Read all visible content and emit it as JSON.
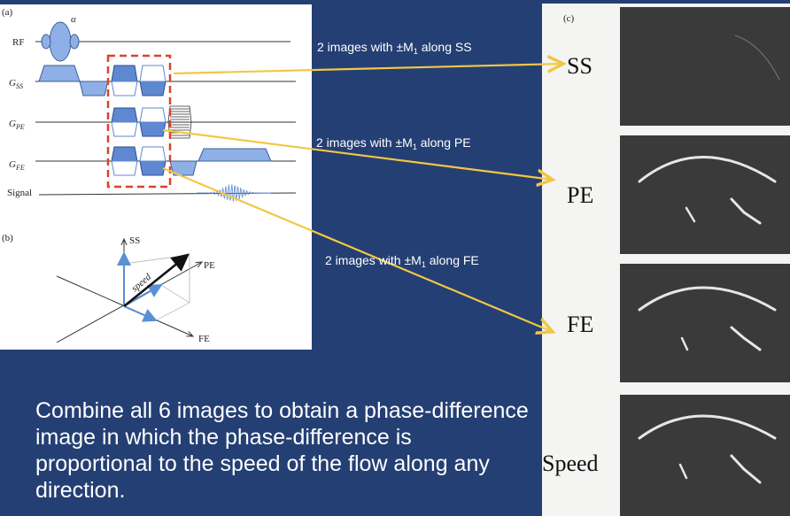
{
  "panels": {
    "a": "(a)",
    "b": "(b)",
    "c": "(c)"
  },
  "sequence": {
    "flip_angle": "α",
    "rows": [
      {
        "id": "rf",
        "main": "RF",
        "sub": ""
      },
      {
        "id": "gss",
        "main": "G",
        "sub": "SS"
      },
      {
        "id": "gpe",
        "main": "G",
        "sub": "PE"
      },
      {
        "id": "gfe",
        "main": "G",
        "sub": "FE"
      },
      {
        "id": "signal",
        "main": "Signal",
        "sub": ""
      }
    ]
  },
  "vector_diagram": {
    "axes": [
      "SS",
      "PE",
      "FE"
    ],
    "vector_label": "speed"
  },
  "annotations": [
    {
      "id": "ss",
      "text": "2 images with ±M",
      "sub": "1",
      "suffix": " along SS"
    },
    {
      "id": "pe",
      "text": "2 images with ±M",
      "sub": "1",
      "suffix": " along PE"
    },
    {
      "id": "fe",
      "text": "2 images with ±M",
      "sub": "1",
      "suffix": " along FE"
    }
  ],
  "image_rows": [
    "SS",
    "PE",
    "FE",
    "Speed"
  ],
  "summary": "Combine all 6 images to obtain a phase-difference image in which the phase-difference is proportional to the speed of the flow along any direction.",
  "colors": {
    "background": "#243f73",
    "arrow": "#f2c744",
    "dashed_box": "#d9432b",
    "gradient_fill": "#6e95d8",
    "vector_blue": "#5b8fd4"
  }
}
